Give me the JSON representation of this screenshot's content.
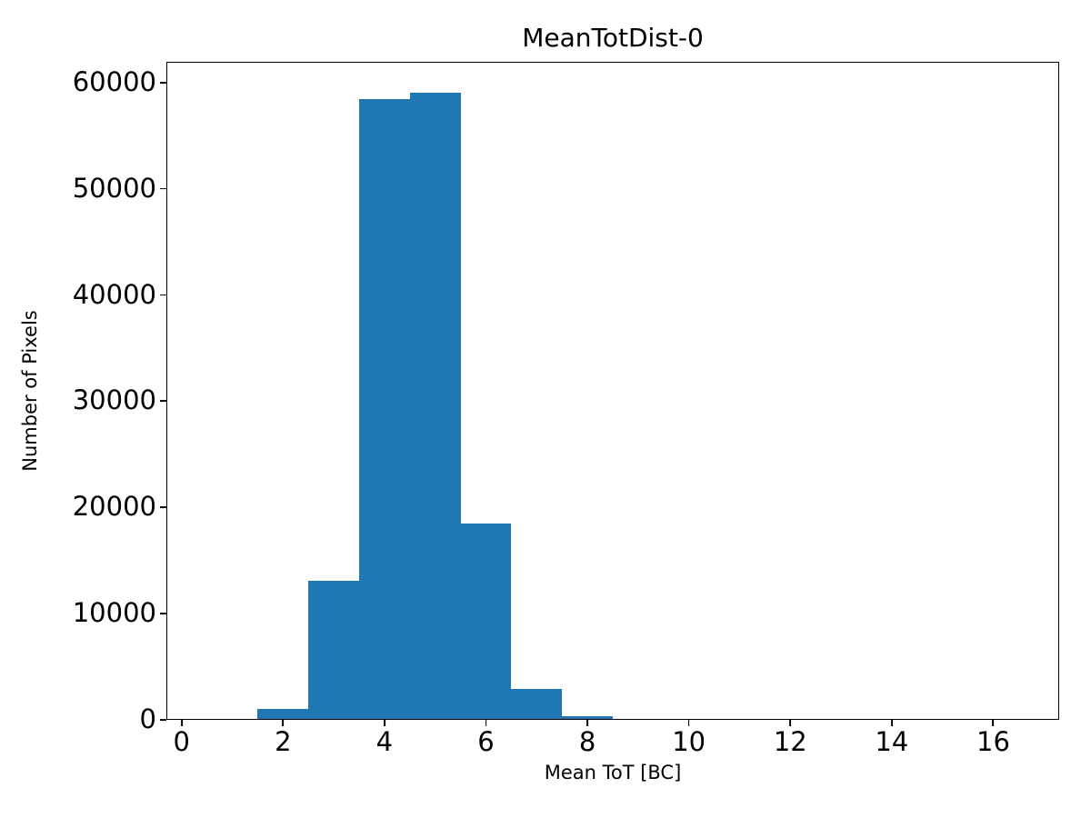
{
  "chart_data": {
    "type": "bar",
    "subtype": "histogram",
    "title": "MeanTotDist-0",
    "xlabel": "Mean ToT [BC]",
    "ylabel": "Number of Pixels",
    "bar_color": "#1f77b4",
    "axis_color": "#000000",
    "background_color": "#ffffff",
    "bin_edges": [
      0.5,
      1.5,
      2.5,
      3.5,
      4.5,
      5.5,
      6.5,
      7.5,
      8.5,
      9.5,
      10.5,
      11.5,
      12.5,
      13.5,
      14.5,
      15.5,
      16.5
    ],
    "counts": [
      0,
      1000,
      13100,
      58400,
      59000,
      18500,
      2950,
      375,
      90,
      0,
      0,
      0,
      0,
      0,
      0,
      0
    ],
    "xticks": [
      0,
      2,
      4,
      6,
      8,
      10,
      12,
      14,
      16
    ],
    "yticks": [
      0,
      10000,
      20000,
      30000,
      40000,
      50000,
      60000
    ],
    "xlim": [
      -0.3,
      17.3
    ],
    "ylim": [
      0,
      61950
    ],
    "grid": false,
    "legend": null
  }
}
